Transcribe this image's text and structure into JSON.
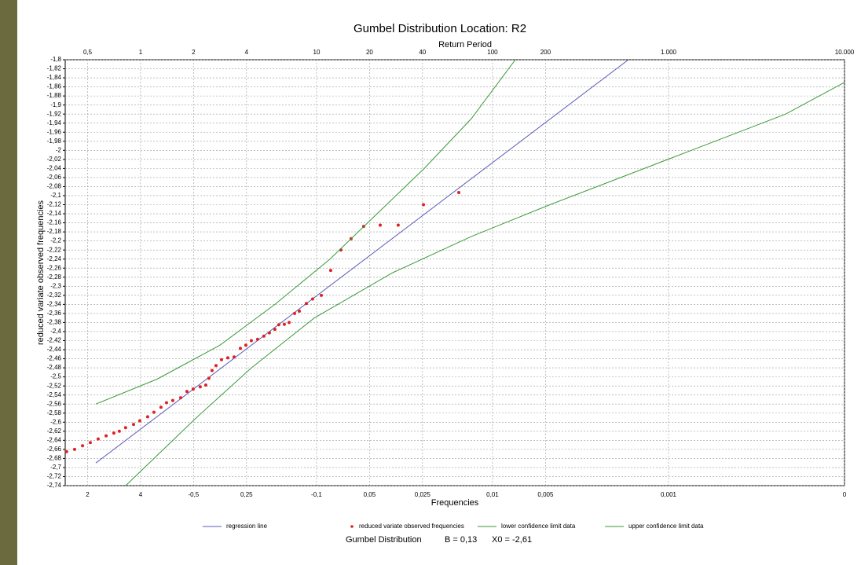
{
  "chart_data": {
    "type": "line",
    "title": "Gumbel Distribution Location: R2",
    "x2_label": "Return Period",
    "x_label": "Frequencies",
    "y_label": "reduced variate observed frequencies",
    "footer": {
      "label": "Gumbel Distribution",
      "b": "B = 0,13",
      "x0": "X0 = -2,61"
    },
    "x_scale": "log",
    "grid": true,
    "xlim": [
      0.373,
      10000
    ],
    "xticks": [
      {
        "value": 0.5,
        "label": "0,5"
      },
      1,
      2,
      4,
      10,
      20,
      40,
      100,
      200,
      {
        "value": 1000,
        "label": "1.000"
      },
      {
        "value": 10000,
        "label": "10.000"
      }
    ],
    "bottom_labels": [
      "2",
      "4",
      "-0,5",
      "0,25",
      "-0,1",
      "0,05",
      "0,025",
      "0,01",
      "0,005",
      "0,001",
      "0"
    ],
    "ylim": [
      -2.74,
      -1.8
    ],
    "yticks": [
      {
        "value": -1.8,
        "label": "-1,8"
      },
      {
        "value": -1.82,
        "label": "-1,82"
      },
      {
        "value": -1.84,
        "label": "-1,84"
      },
      {
        "value": -1.86,
        "label": "-1,86"
      },
      {
        "value": -1.88,
        "label": "-1,88"
      },
      {
        "value": -1.9,
        "label": "-1,9"
      },
      {
        "value": -1.92,
        "label": "-1,92"
      },
      {
        "value": -1.94,
        "label": "-1,94"
      },
      {
        "value": -1.96,
        "label": "-1,96"
      },
      {
        "value": -1.98,
        "label": "-1,98"
      },
      -2,
      {
        "value": -2.02,
        "label": "-2,02"
      },
      {
        "value": -2.04,
        "label": "-2,04"
      },
      {
        "value": -2.06,
        "label": "-2,06"
      },
      {
        "value": -2.08,
        "label": "-2,08"
      },
      {
        "value": -2.1,
        "label": "-2,1"
      },
      {
        "value": -2.12,
        "label": "-2,12"
      },
      {
        "value": -2.14,
        "label": "-2,14"
      },
      {
        "value": -2.16,
        "label": "-2,16"
      },
      {
        "value": -2.18,
        "label": "-2,18"
      },
      {
        "value": -2.2,
        "label": "-2,2"
      },
      {
        "value": -2.22,
        "label": "-2,22"
      },
      {
        "value": -2.24,
        "label": "-2,24"
      },
      {
        "value": -2.26,
        "label": "-2,26"
      },
      {
        "value": -2.28,
        "label": "-2,28"
      },
      {
        "value": -2.3,
        "label": "-2,3"
      },
      {
        "value": -2.32,
        "label": "-2,32"
      },
      {
        "value": -2.34,
        "label": "-2,34"
      },
      {
        "value": -2.36,
        "label": "-2,36"
      },
      {
        "value": -2.38,
        "label": "-2,38"
      },
      {
        "value": -2.4,
        "label": "-2,4"
      },
      {
        "value": -2.42,
        "label": "-2,42"
      },
      {
        "value": -2.44,
        "label": "-2,44"
      },
      {
        "value": -2.46,
        "label": "-2,46"
      },
      {
        "value": -2.48,
        "label": "-2,48"
      },
      {
        "value": -2.5,
        "label": "-2,5"
      },
      {
        "value": -2.52,
        "label": "-2,52"
      },
      {
        "value": -2.54,
        "label": "-2,54"
      },
      {
        "value": -2.56,
        "label": "-2,56"
      },
      {
        "value": -2.58,
        "label": "-2,58"
      },
      {
        "value": -2.6,
        "label": "-2,6"
      },
      {
        "value": -2.62,
        "label": "-2,62"
      },
      {
        "value": -2.64,
        "label": "-2,64"
      },
      {
        "value": -2.66,
        "label": "-2,66"
      },
      {
        "value": -2.68,
        "label": "-2,68"
      },
      {
        "value": -2.7,
        "label": "-2,7"
      },
      {
        "value": -2.72,
        "label": "-2,72"
      },
      {
        "value": -2.74,
        "label": "-2,74"
      }
    ],
    "series": [
      {
        "name": "regression line",
        "style": "line",
        "color": "#5a5ab8",
        "x": [
          0.557,
          591.6
        ],
        "values": [
          -2.69,
          -1.8
        ]
      },
      {
        "name": "reduced variate observed frequencies",
        "style": "markers",
        "color": "#dd2222",
        "x": [
          0.38,
          0.422,
          0.468,
          0.518,
          0.574,
          0.637,
          0.705,
          0.757,
          0.822,
          0.912,
          0.99,
          1.097,
          1.191,
          1.306,
          1.404,
          1.524,
          1.69,
          1.834,
          1.99,
          2.183,
          2.347,
          2.445,
          2.548,
          2.683,
          2.884,
          3.131,
          3.399,
          3.69,
          3.964,
          4.259,
          4.624,
          5.02,
          5.395,
          5.796,
          6.103,
          6.56,
          6.98,
          7.503,
          7.982,
          8.75,
          9.499,
          10.64,
          12.03,
          13.75,
          15.71,
          18.52,
          23.0,
          29.1,
          40.5,
          64.3
        ],
        "values": [
          -2.665,
          -2.66,
          -2.652,
          -2.645,
          -2.637,
          -2.63,
          -2.624,
          -2.62,
          -2.612,
          -2.605,
          -2.597,
          -2.588,
          -2.578,
          -2.567,
          -2.557,
          -2.552,
          -2.546,
          -2.532,
          -2.527,
          -2.522,
          -2.518,
          -2.503,
          -2.486,
          -2.475,
          -2.462,
          -2.458,
          -2.456,
          -2.437,
          -2.43,
          -2.42,
          -2.417,
          -2.41,
          -2.403,
          -2.395,
          -2.385,
          -2.384,
          -2.38,
          -2.36,
          -2.355,
          -2.338,
          -2.328,
          -2.32,
          -2.265,
          -2.22,
          -2.195,
          -2.168,
          -2.165,
          -2.165,
          -2.12,
          -2.093
        ]
      },
      {
        "name": "lower confidence limit data",
        "style": "line",
        "color": "#3a9a3a",
        "x": [
          0.823,
          2.075,
          4.262,
          9.696,
          27.1,
          75.78,
          211.8,
          989.7,
          4628,
          10000
        ],
        "values": [
          -2.74,
          -2.59,
          -2.48,
          -2.37,
          -2.27,
          -2.19,
          -2.12,
          -2.02,
          -1.92,
          -1.85
        ]
      },
      {
        "name": "upper confidence limit data",
        "style": "line",
        "color": "#3a9a3a",
        "x": [
          0.557,
          1.241,
          2.824,
          5.799,
          11.91,
          22.07,
          40.89,
          75.78,
          134.7
        ],
        "values": [
          -2.56,
          -2.505,
          -2.43,
          -2.34,
          -2.24,
          -2.14,
          -2.04,
          -1.93,
          -1.8
        ]
      }
    ]
  }
}
